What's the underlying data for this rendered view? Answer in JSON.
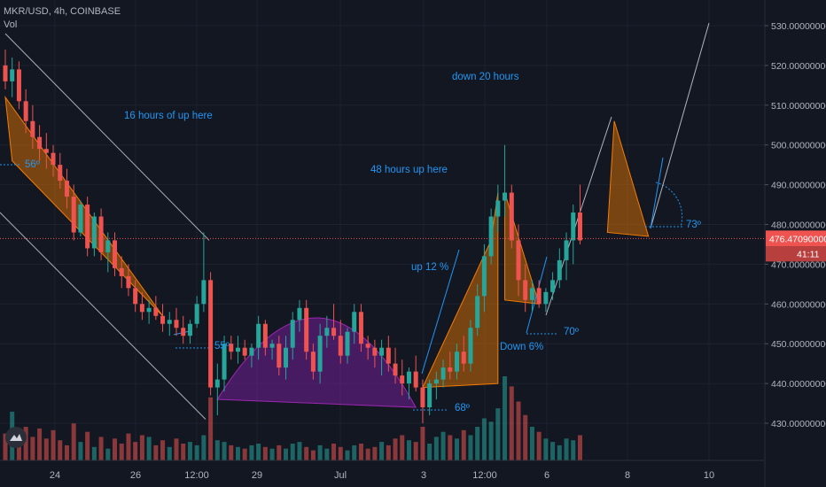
{
  "header": {
    "symbol": "MKR/USD, 4h, COINBASE",
    "vol_label": "Vol"
  },
  "current_price_label": "476.47090000",
  "countdown_label": "41:11",
  "colors": {
    "background": "#131722",
    "bull": "#26a69a",
    "bear": "#ef5350",
    "annotation": "#2196f3",
    "triangle_fill": "#f57c00",
    "arc_fill": "#7b1fa2",
    "channel": "#d1d4dc",
    "price_line": "#ef5350"
  },
  "annotations": {
    "up16": "16 hours of up here",
    "up48": "48 hours up here",
    "down20": "down 20 hours",
    "up12": "up 12 %",
    "down6": "Down 6%",
    "angle56": "56º",
    "angle55": "55º",
    "angle68": "68º",
    "angle70": "70º",
    "angle73": "73º"
  },
  "chart_data": {
    "type": "candlestick",
    "title": "MKR/USD, 4h, COINBASE",
    "ylim": [
      422,
      532
    ],
    "y_ticks": [
      430,
      440,
      450,
      460,
      470,
      480,
      490,
      500,
      510,
      520,
      530
    ],
    "y_tick_labels": [
      "430.00000000",
      "440.00000000",
      "450.00000000",
      "460.00000000",
      "470.00000000",
      "480.00000000",
      "490.00000000",
      "500.00000000",
      "510.00000000",
      "520.00000000",
      "530.00000000"
    ],
    "x_ticks": [
      "24",
      "26",
      "12:00",
      "29",
      "Jul",
      "3",
      "12:00",
      "6",
      "8",
      "10"
    ],
    "current_price": 476.4709,
    "candles": [
      [
        520,
        524,
        514,
        516
      ],
      [
        516,
        522,
        512,
        519
      ],
      [
        519,
        521,
        509,
        511
      ],
      [
        511,
        514,
        503,
        506
      ],
      [
        506,
        510,
        499,
        502
      ],
      [
        502,
        505,
        496,
        499
      ],
      [
        499,
        503,
        494,
        498
      ],
      [
        498,
        500,
        492,
        495
      ],
      [
        495,
        498,
        489,
        491
      ],
      [
        491,
        494,
        484,
        487
      ],
      [
        487,
        490,
        476,
        478
      ],
      [
        478,
        486,
        477,
        485
      ],
      [
        485,
        487,
        472,
        474
      ],
      [
        474,
        483,
        472,
        482
      ],
      [
        482,
        484,
        471,
        473
      ],
      [
        473,
        478,
        468,
        476
      ],
      [
        476,
        478,
        467,
        469
      ],
      [
        469,
        472,
        464,
        467
      ],
      [
        467,
        470,
        462,
        464
      ],
      [
        464,
        466,
        458,
        460
      ],
      [
        460,
        463,
        456,
        458
      ],
      [
        458,
        461,
        455,
        459
      ],
      [
        459,
        462,
        456,
        457
      ],
      [
        457,
        460,
        453,
        455
      ],
      [
        455,
        458,
        452,
        456
      ],
      [
        456,
        459,
        452,
        454
      ],
      [
        454,
        457,
        450,
        452
      ],
      [
        452,
        456,
        450,
        455
      ],
      [
        455,
        462,
        454,
        460
      ],
      [
        460,
        478,
        458,
        466
      ],
      [
        466,
        468,
        437,
        439
      ],
      [
        439,
        445,
        432,
        441
      ],
      [
        441,
        452,
        438,
        450
      ],
      [
        450,
        452,
        446,
        448
      ],
      [
        448,
        452,
        445,
        449
      ],
      [
        449,
        451,
        446,
        447
      ],
      [
        447,
        450,
        444,
        449
      ],
      [
        449,
        457,
        446,
        455
      ],
      [
        455,
        456,
        447,
        449
      ],
      [
        449,
        451,
        446,
        450
      ],
      [
        450,
        452,
        442,
        444
      ],
      [
        444,
        452,
        441,
        449
      ],
      [
        449,
        458,
        446,
        456
      ],
      [
        456,
        461,
        453,
        459
      ],
      [
        459,
        461,
        446,
        448
      ],
      [
        448,
        450,
        441,
        443
      ],
      [
        443,
        455,
        440,
        452
      ],
      [
        452,
        457,
        449,
        454
      ],
      [
        454,
        460,
        451,
        452
      ],
      [
        452,
        456,
        445,
        447
      ],
      [
        447,
        454,
        445,
        453
      ],
      [
        453,
        460,
        450,
        458
      ],
      [
        458,
        460,
        448,
        450
      ],
      [
        450,
        452,
        446,
        449
      ],
      [
        449,
        451,
        444,
        447
      ],
      [
        447,
        451,
        442,
        449
      ],
      [
        449,
        452,
        443,
        445
      ],
      [
        445,
        449,
        440,
        442
      ],
      [
        442,
        446,
        437,
        440
      ],
      [
        440,
        444,
        436,
        443
      ],
      [
        443,
        447,
        438,
        439
      ],
      [
        439,
        441,
        430,
        434
      ],
      [
        434,
        441,
        432,
        440
      ],
      [
        440,
        443,
        436,
        441
      ],
      [
        441,
        446,
        439,
        444
      ],
      [
        444,
        448,
        441,
        443
      ],
      [
        443,
        450,
        441,
        448
      ],
      [
        448,
        452,
        443,
        445
      ],
      [
        445,
        456,
        443,
        454
      ],
      [
        454,
        465,
        452,
        462
      ],
      [
        462,
        475,
        458,
        472
      ],
      [
        472,
        484,
        470,
        482
      ],
      [
        482,
        490,
        478,
        486
      ],
      [
        486,
        500,
        482,
        488
      ],
      [
        488,
        490,
        474,
        476
      ],
      [
        476,
        480,
        462,
        466
      ],
      [
        466,
        470,
        458,
        461
      ],
      [
        461,
        466,
        458,
        464
      ],
      [
        464,
        466,
        459,
        460
      ],
      [
        460,
        464,
        458,
        463
      ],
      [
        463,
        468,
        461,
        466
      ],
      [
        466,
        474,
        464,
        471
      ],
      [
        471,
        478,
        466,
        476
      ],
      [
        476,
        485,
        470,
        483
      ],
      [
        483,
        490,
        475,
        476
      ]
    ],
    "volume_max": 100,
    "volumes": [
      32,
      58,
      22,
      40,
      28,
      38,
      26,
      36,
      24,
      18,
      44,
      22,
      34,
      16,
      28,
      14,
      26,
      20,
      32,
      22,
      30,
      28,
      18,
      24,
      16,
      26,
      20,
      22,
      18,
      30,
      75,
      24,
      22,
      18,
      16,
      14,
      18,
      20,
      16,
      14,
      18,
      14,
      20,
      22,
      16,
      12,
      18,
      14,
      20,
      16,
      12,
      18,
      20,
      14,
      16,
      22,
      18,
      26,
      30,
      24,
      22,
      40,
      20,
      28,
      34,
      30,
      26,
      36,
      30,
      40,
      50,
      46,
      62,
      100,
      88,
      70,
      54,
      40,
      34,
      26,
      22,
      18,
      26,
      24,
      30
    ]
  }
}
